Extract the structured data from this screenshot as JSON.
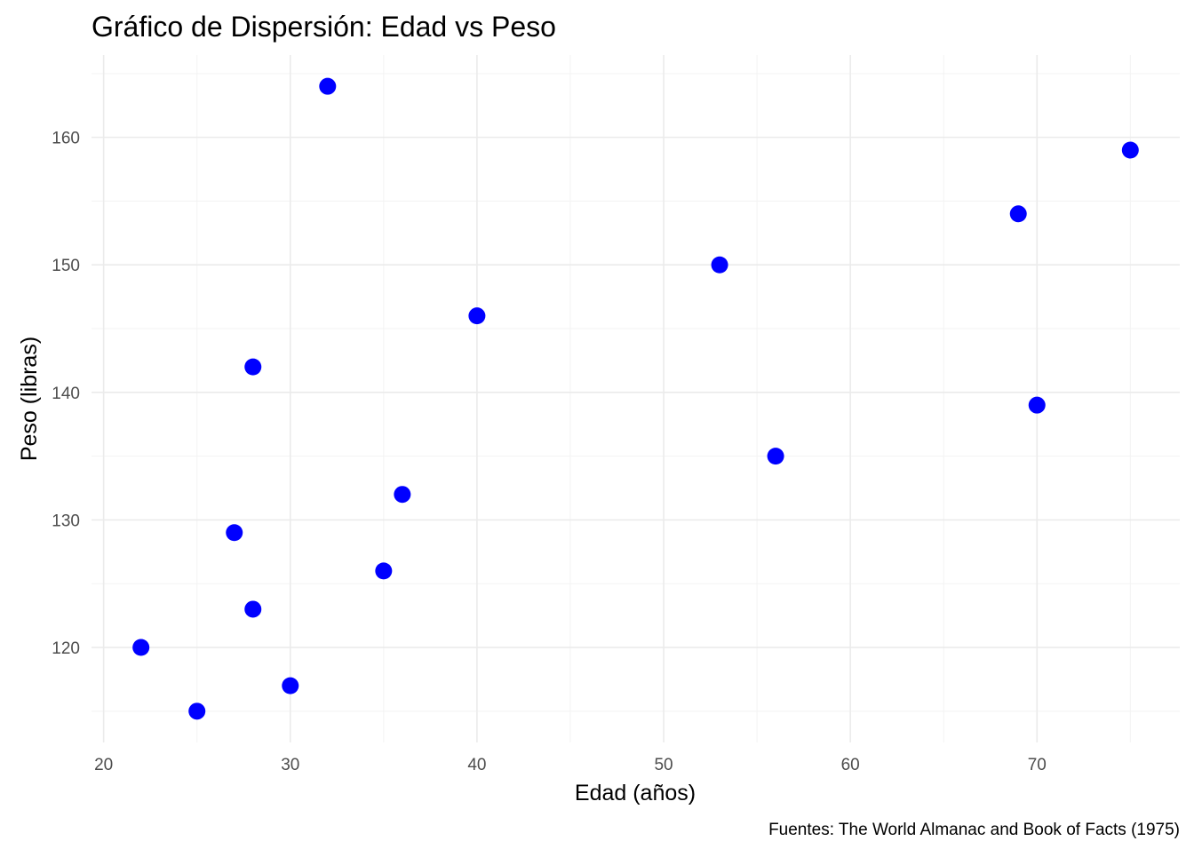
{
  "chart_data": {
    "type": "scatter",
    "title": "Gráfico de Dispersión: Edad vs Peso",
    "xlabel": "Edad (años)",
    "ylabel": "Peso (libras)",
    "caption": "Fuentes: The World Almanac and Book of Facts (1975)",
    "xlim": [
      19.35,
      77.65
    ],
    "ylim": [
      112.55,
      166.45
    ],
    "x_ticks": [
      20,
      30,
      40,
      50,
      60,
      70
    ],
    "x_tick_labels": [
      "20",
      "30",
      "40",
      "50",
      "60",
      "70"
    ],
    "x_minor_ticks": [
      25,
      35,
      45,
      55,
      65,
      75
    ],
    "y_ticks": [
      120,
      130,
      140,
      150,
      160
    ],
    "y_tick_labels": [
      "120",
      "130",
      "140",
      "150",
      "160"
    ],
    "y_minor_ticks": [
      115,
      125,
      135,
      145,
      155,
      165
    ],
    "grid": true,
    "legend": "none",
    "point_color": "#0000ff",
    "points": [
      {
        "x": 22,
        "y": 120
      },
      {
        "x": 25,
        "y": 115
      },
      {
        "x": 27,
        "y": 129
      },
      {
        "x": 28,
        "y": 142
      },
      {
        "x": 28,
        "y": 123
      },
      {
        "x": 30,
        "y": 117
      },
      {
        "x": 32,
        "y": 164
      },
      {
        "x": 35,
        "y": 126
      },
      {
        "x": 36,
        "y": 132
      },
      {
        "x": 40,
        "y": 146
      },
      {
        "x": 53,
        "y": 150
      },
      {
        "x": 56,
        "y": 135
      },
      {
        "x": 69,
        "y": 154
      },
      {
        "x": 70,
        "y": 139
      },
      {
        "x": 75,
        "y": 159
      }
    ]
  }
}
